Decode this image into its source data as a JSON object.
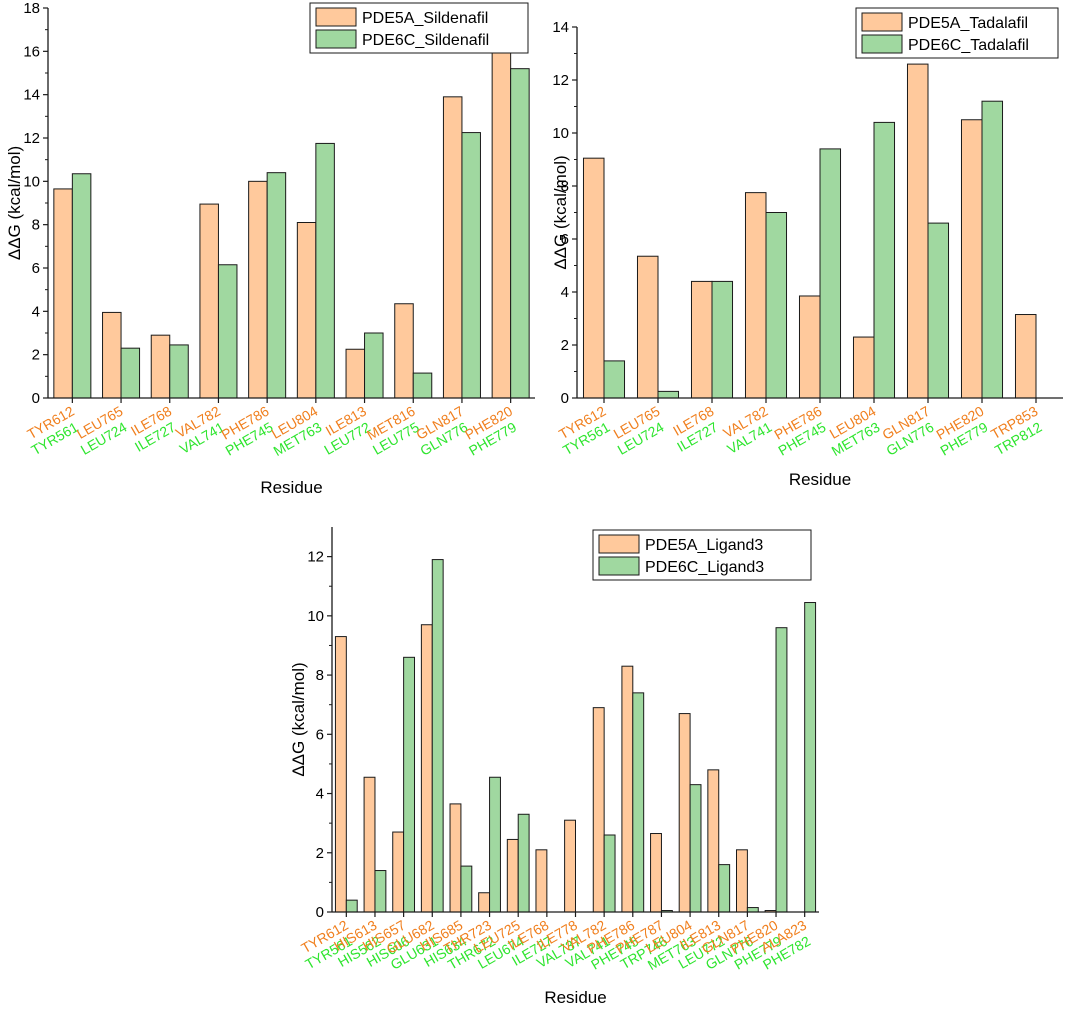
{
  "colors": {
    "pde5a": "#ffc99c",
    "pde6c": "#a0d8a0",
    "stroke": "#1a1a1a",
    "label5a": "#f07f1e",
    "label6c": "#2ee52e"
  },
  "chart_data": [
    {
      "type": "bar",
      "ylabel": "ΔΔG (kcal/mol)",
      "xlabel": "Residue",
      "ylim": [
        0,
        18
      ],
      "yticks": [
        0,
        2,
        4,
        6,
        8,
        10,
        12,
        14,
        16,
        18
      ],
      "legend_position": "top-right",
      "categories_5a": [
        "TYR612",
        "LEU765",
        "ILE768",
        "VAL782",
        "PHE786",
        "LEU804",
        "ILE813",
        "MET816",
        "GLN817",
        "PHE820"
      ],
      "categories_6c": [
        "TYR561",
        "LEU724",
        "ILE727",
        "VAL741",
        "PHE745",
        "MET763",
        "LEU772",
        "LEU775",
        "GLN776",
        "PHE779"
      ],
      "series": [
        {
          "name": "PDE5A_Sildenafil",
          "values": [
            9.65,
            3.95,
            2.9,
            8.95,
            10.0,
            8.1,
            2.25,
            4.35,
            13.9,
            16.0
          ]
        },
        {
          "name": "PDE6C_Sildenafil",
          "values": [
            10.35,
            2.3,
            2.45,
            6.15,
            10.4,
            11.75,
            3.0,
            1.15,
            12.25,
            15.2
          ]
        }
      ]
    },
    {
      "type": "bar",
      "ylabel": "ΔΔG (kcal/mol)",
      "xlabel": "Residue",
      "ylim": [
        0,
        14
      ],
      "yticks": [
        0,
        2,
        4,
        6,
        8,
        10,
        12,
        14
      ],
      "legend_position": "top-right",
      "categories_5a": [
        "TYR612",
        "LEU765",
        "ILE768",
        "VAL782",
        "PHE786",
        "LEU804",
        "GLN817",
        "PHE820",
        "TRP853"
      ],
      "categories_6c": [
        "TYR561",
        "LEU724",
        "ILE727",
        "VAL741",
        "PHE745",
        "MET763",
        "GLN776",
        "PHE779",
        "TRP812"
      ],
      "series": [
        {
          "name": "PDE5A_Tadalafil",
          "values": [
            9.05,
            5.35,
            4.4,
            7.75,
            3.85,
            2.3,
            12.6,
            10.5,
            3.15
          ]
        },
        {
          "name": "PDE6C_Tadalafil",
          "values": [
            1.4,
            0.25,
            4.4,
            7.0,
            9.4,
            10.4,
            6.6,
            11.2,
            0
          ]
        }
      ]
    },
    {
      "type": "bar",
      "ylabel": "ΔΔG (kcal/mol)",
      "xlabel": "Residue",
      "ylim": [
        0,
        13
      ],
      "yticks": [
        0,
        2,
        4,
        6,
        8,
        10,
        12
      ],
      "legend_position": "top-right",
      "categories_5a": [
        "TYR612",
        "HIS613",
        "HIS657",
        "GLU682",
        "HIS685",
        "THR723",
        "LEU725",
        "ILE768",
        "ILE778",
        "VAL782",
        "PHE786",
        "PHE787",
        "LEU804",
        "ILE813",
        "GLN817",
        "PHE820",
        "ALA823"
      ],
      "categories_6c": [
        "TYR561",
        "HIS562",
        "HIS606",
        "GLU631",
        "HIS634",
        "THR672",
        "LEU674",
        "ILE727",
        "VAL737",
        "VAL741",
        "PHE745",
        "TRP746",
        "MET763",
        "LEU772",
        "GLN776",
        "PHE779",
        "PHE782"
      ],
      "series": [
        {
          "name": "PDE5A_Ligand3",
          "values": [
            9.3,
            4.55,
            2.7,
            9.7,
            3.65,
            0.65,
            2.45,
            2.1,
            3.1,
            6.9,
            8.3,
            2.65,
            6.7,
            4.8,
            2.1,
            0.05,
            0
          ]
        },
        {
          "name": "PDE6C_Ligand3",
          "values": [
            0.4,
            1.4,
            8.6,
            11.9,
            1.55,
            4.55,
            3.3,
            0,
            0,
            2.6,
            7.4,
            0.05,
            4.3,
            1.6,
            0.15,
            9.6,
            10.45
          ]
        }
      ]
    }
  ]
}
